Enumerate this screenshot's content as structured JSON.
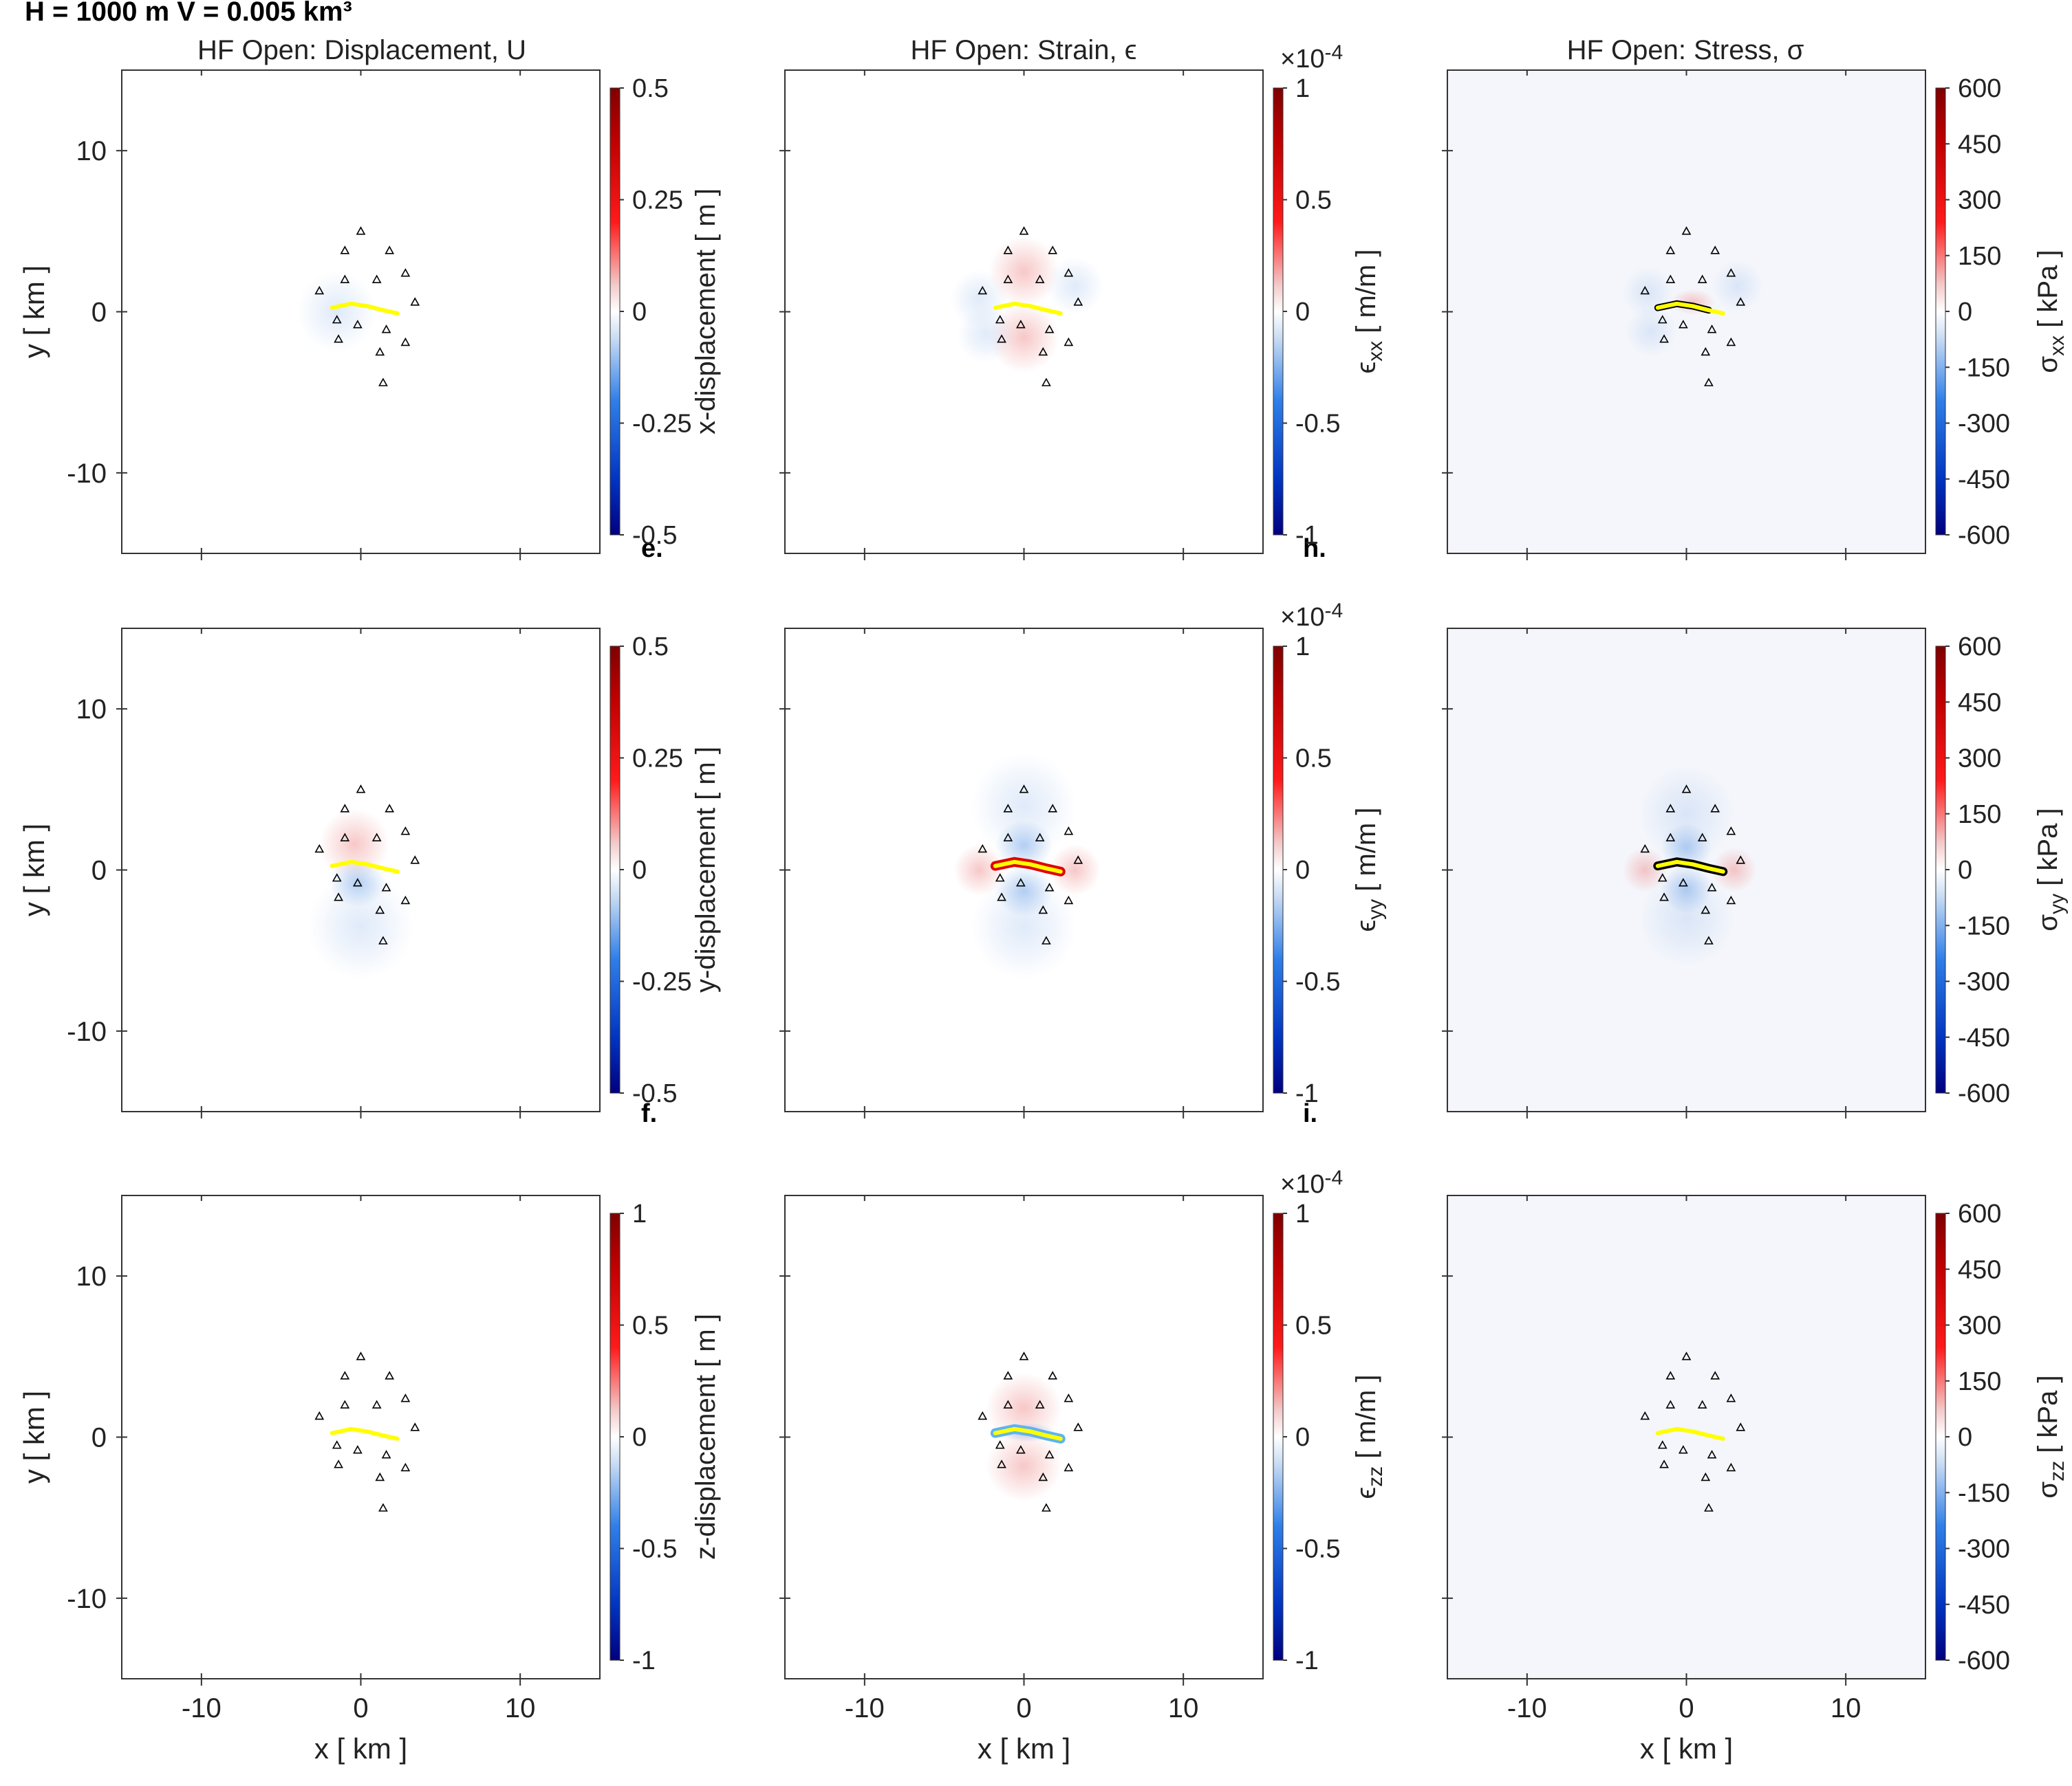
{
  "header": "H = 1000 m   V = 0.005 km³",
  "column_titles": [
    "HF Open: Displacement, U",
    "HF Open: Strain, ϵ",
    "HF Open: Stress, σ"
  ],
  "axes": {
    "xlabel": "x [ km ]",
    "ylabel": "y [ km ]",
    "xlim": [
      -15,
      15
    ],
    "ylim": [
      -15,
      15
    ],
    "xticks": [
      -10,
      0,
      10
    ],
    "yticks": [
      -10,
      0,
      10
    ],
    "tick_labels": [
      "-10",
      "0",
      "10"
    ]
  },
  "panel_letters": [
    "e.",
    "h.",
    "f.",
    "i."
  ],
  "strain_multiplier": "×10",
  "strain_exponent": "-4",
  "colorbars": [
    {
      "label": "x-displacement  [ m ]",
      "ticks": [
        "0.5",
        "0.25",
        "0",
        "-0.25",
        "-0.5"
      ],
      "lim": [
        -0.5,
        0.5
      ]
    },
    {
      "label": "ϵxx  [ m/m ]",
      "ticks": [
        "1",
        "0.5",
        "0",
        "-0.5",
        "-1"
      ],
      "lim": [
        -1,
        1
      ]
    },
    {
      "label": "σxx  [ kPa ]",
      "ticks": [
        "600",
        "450",
        "300",
        "150",
        "0",
        "-150",
        "-300",
        "-450",
        "-600"
      ],
      "lim": [
        -600,
        600
      ]
    },
    {
      "label": "y-displacement  [ m ]",
      "ticks": [
        "0.5",
        "0.25",
        "0",
        "-0.25",
        "-0.5"
      ],
      "lim": [
        -0.5,
        0.5
      ]
    },
    {
      "label": "ϵyy  [ m/m ]",
      "ticks": [
        "1",
        "0.5",
        "0",
        "-0.5",
        "-1"
      ],
      "lim": [
        -1,
        1
      ]
    },
    {
      "label": "σyy  [ kPa ]",
      "ticks": [
        "600",
        "450",
        "300",
        "150",
        "0",
        "-150",
        "-300",
        "-450",
        "-600"
      ],
      "lim": [
        -600,
        600
      ]
    },
    {
      "label": "z-displacement  [ m ]",
      "ticks": [
        "1",
        "0.5",
        "0",
        "-0.5",
        "-1"
      ],
      "lim": [
        -1,
        1
      ]
    },
    {
      "label": "ϵzz  [ m/m ]",
      "ticks": [
        "1",
        "0.5",
        "0",
        "-0.5",
        "-1"
      ],
      "lim": [
        -1,
        1
      ]
    },
    {
      "label": "σzz  [ kPa ]",
      "ticks": [
        "600",
        "450",
        "300",
        "150",
        "0",
        "-150",
        "-300",
        "-450",
        "-600"
      ],
      "lim": [
        -600,
        600
      ]
    }
  ],
  "colors": {
    "colormap": [
      "#00007f",
      "#0033bf",
      "#2f7fe8",
      "#c9dcf3",
      "#ffffff",
      "#f3c9c9",
      "#ff1a1a",
      "#c00000",
      "#7f0000"
    ],
    "fault_trace": "#ffff00",
    "stress_fill": "#f4f6fb",
    "frame": "#333333"
  },
  "chart_data": {
    "type": "heatmap",
    "grid": "3x3 panels",
    "stations_km": [
      [
        0,
        5
      ],
      [
        -1,
        3.8
      ],
      [
        1.8,
        3.8
      ],
      [
        2.8,
        2.4
      ],
      [
        -2.6,
        1.3
      ],
      [
        -1,
        2
      ],
      [
        1,
        2
      ],
      [
        3.4,
        0.6
      ],
      [
        -1.5,
        -0.5
      ],
      [
        -0.2,
        -0.8
      ],
      [
        1.6,
        -1.1
      ],
      [
        -1.4,
        -1.7
      ],
      [
        2.8,
        -1.9
      ],
      [
        1.2,
        -2.5
      ],
      [
        1.4,
        -4.4
      ]
    ],
    "fault_trace_km": [
      [
        -1.8,
        0.25
      ],
      [
        -0.6,
        0.5
      ],
      [
        0.4,
        0.35
      ],
      [
        1.4,
        0.1
      ],
      [
        2.3,
        -0.1
      ]
    ],
    "panels": [
      {
        "quantity": "x-displacement",
        "unit": "m"
      },
      {
        "quantity": "strain xx",
        "unit": "m/m",
        "scale": "1e-4"
      },
      {
        "quantity": "stress xx",
        "unit": "kPa"
      },
      {
        "quantity": "y-displacement",
        "unit": "m"
      },
      {
        "quantity": "strain yy",
        "unit": "m/m",
        "scale": "1e-4"
      },
      {
        "quantity": "stress yy",
        "unit": "kPa"
      },
      {
        "quantity": "z-displacement",
        "unit": "m"
      },
      {
        "quantity": "strain zz",
        "unit": "m/m",
        "scale": "1e-4"
      },
      {
        "quantity": "stress zz",
        "unit": "kPa"
      }
    ]
  }
}
